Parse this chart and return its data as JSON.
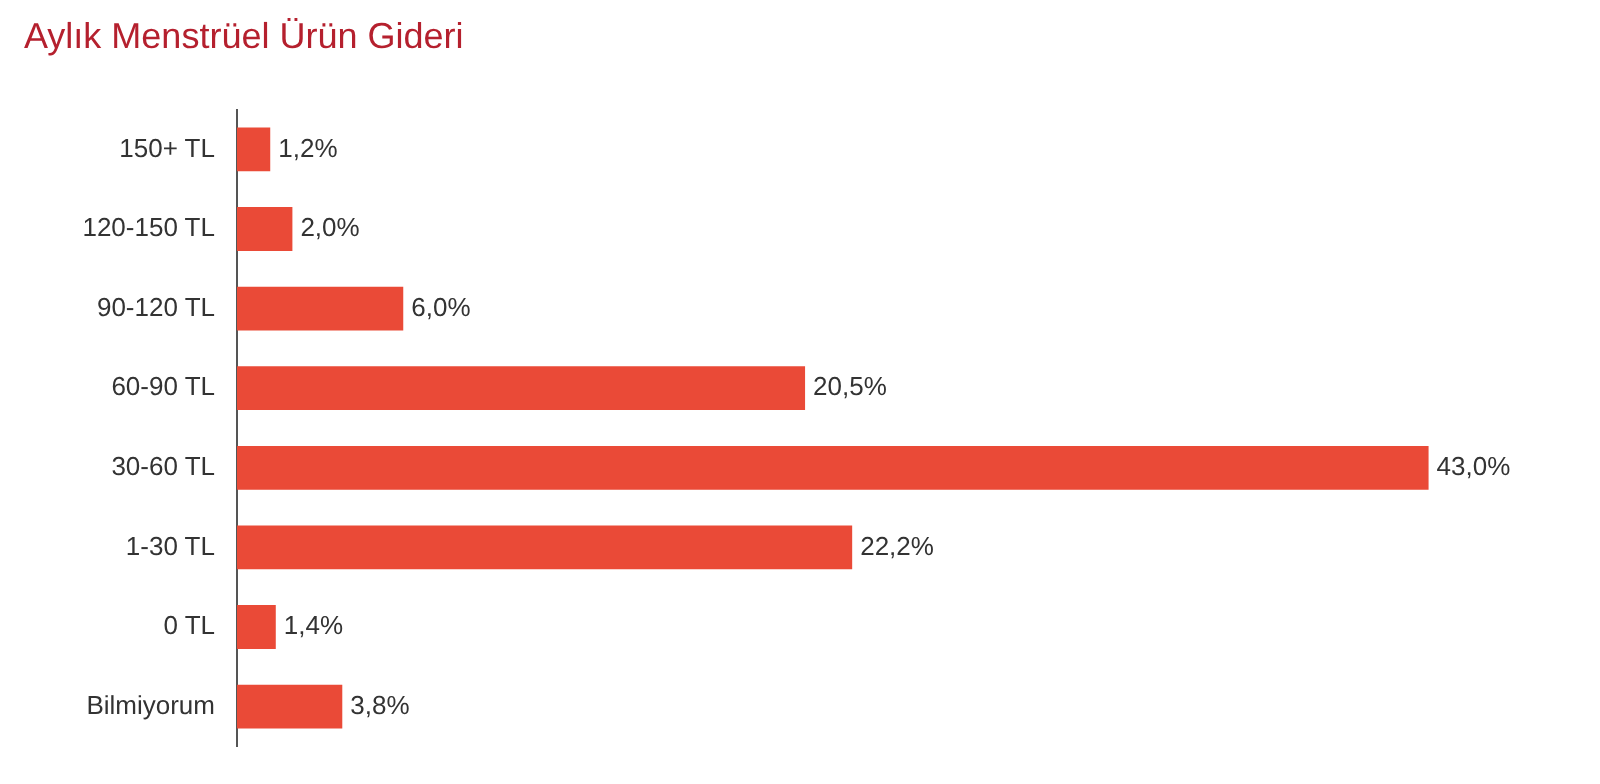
{
  "chart_data": {
    "type": "bar",
    "orientation": "horizontal",
    "title": "Aylık Menstrüel Ürün Gideri",
    "categories": [
      "150+ TL",
      "120-150 TL",
      "90-120 TL",
      "60-90 TL",
      "30-60 TL",
      "1-30 TL",
      "0 TL",
      "Bilmiyorum"
    ],
    "values": [
      1.2,
      2.0,
      6.0,
      20.5,
      43.0,
      22.2,
      1.4,
      3.8
    ],
    "value_labels": [
      "1,2%",
      "2,0%",
      "6,0%",
      "20,5%",
      "43,0%",
      "22,2%",
      "1,4%",
      "3,8%"
    ],
    "color": "#ea4a37",
    "grid": false,
    "legend": false
  }
}
